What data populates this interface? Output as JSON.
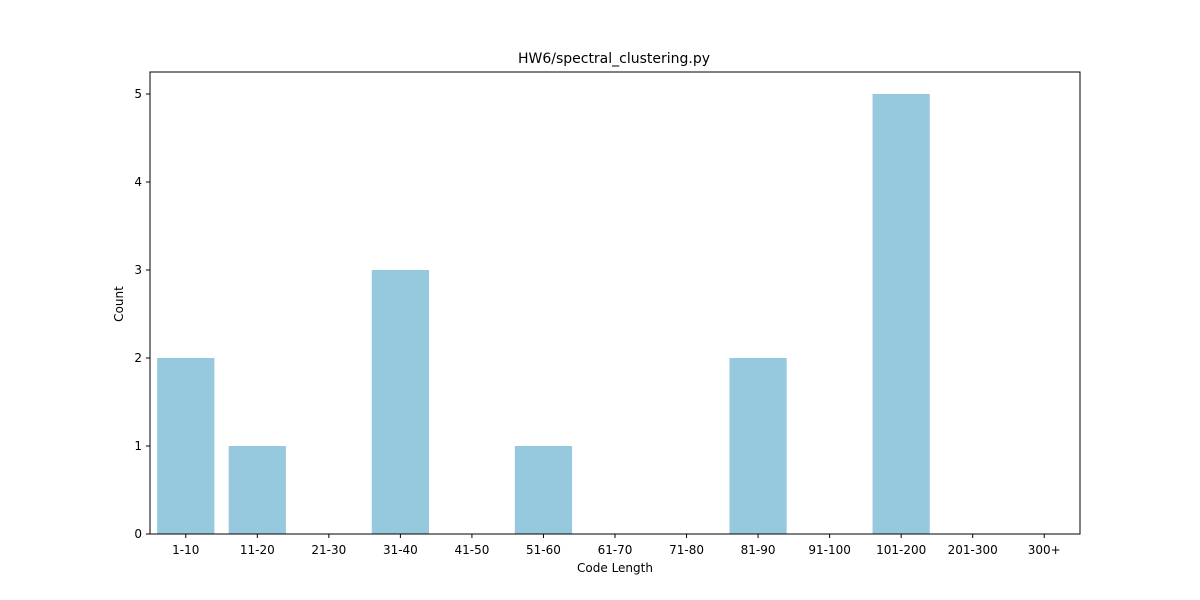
{
  "chart_data": {
    "type": "bar",
    "title": "HW6/spectral_clustering.py",
    "xlabel": "Code Length",
    "ylabel": "Count",
    "categories": [
      "1-10",
      "11-20",
      "21-30",
      "31-40",
      "41-50",
      "51-60",
      "61-70",
      "71-80",
      "81-90",
      "91-100",
      "101-200",
      "201-300",
      "300+"
    ],
    "values": [
      2,
      1,
      0,
      3,
      0,
      1,
      0,
      0,
      2,
      0,
      5,
      0,
      0
    ],
    "yticks": [
      0,
      1,
      2,
      3,
      4,
      5
    ],
    "ylim": [
      0,
      5.25
    ],
    "bar_color": "#96c8de",
    "grid": false,
    "legend": "none"
  }
}
